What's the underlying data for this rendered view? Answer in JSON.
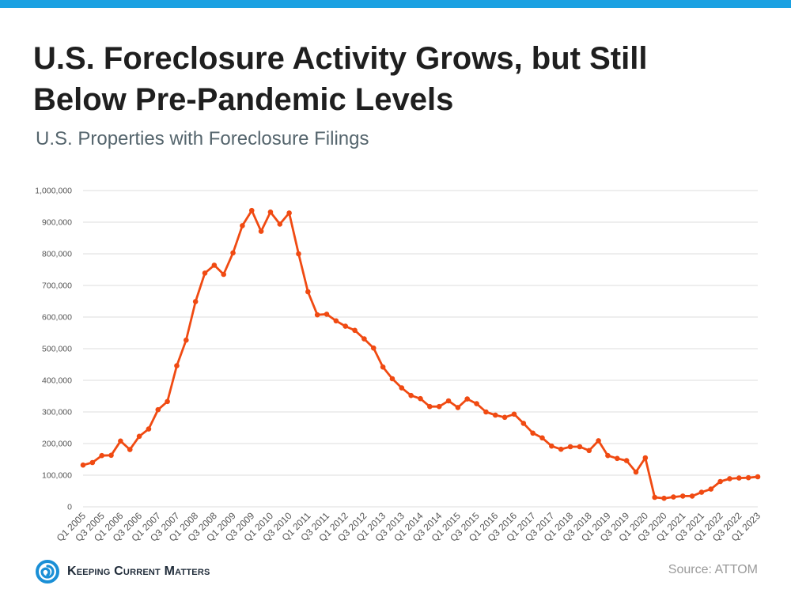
{
  "colors": {
    "top_bar": "#1ba1e2",
    "line": "#f04a12",
    "grid": "#dcdcdc",
    "axis_text": "#555555",
    "logo": "#1a8fd6"
  },
  "header": {
    "title_line1": "U.S. Foreclosure Activity Grows, but Still",
    "title_line2": "Below Pre-Pandemic Levels",
    "subtitle": "U.S. Properties with Foreclosure Filings"
  },
  "footer": {
    "brand": "Keeping Current Matters",
    "logo_icon": "spiral-logo-icon",
    "source": "Source: ATTOM"
  },
  "chart_data": {
    "type": "line",
    "title": "",
    "xlabel": "",
    "ylabel": "",
    "ylim": [
      0,
      1000000
    ],
    "yticks": [
      0,
      100000,
      200000,
      300000,
      400000,
      500000,
      600000,
      700000,
      800000,
      900000,
      1000000
    ],
    "ytick_labels": [
      "0",
      "100,000",
      "200,000",
      "300,000",
      "400,000",
      "500,000",
      "600,000",
      "700,000",
      "800,000",
      "900,000",
      "1,000,000"
    ],
    "grid": true,
    "legend": "none",
    "markers": true,
    "categories": [
      "Q1 2005",
      "Q2 2005",
      "Q3 2005",
      "Q4 2005",
      "Q1 2006",
      "Q2 2006",
      "Q3 2006",
      "Q4 2006",
      "Q1 2007",
      "Q2 2007",
      "Q3 2007",
      "Q4 2007",
      "Q1 2008",
      "Q2 2008",
      "Q3 2008",
      "Q4 2008",
      "Q1 2009",
      "Q2 2009",
      "Q3 2009",
      "Q4 2009",
      "Q1 2010",
      "Q2 2010",
      "Q3 2010",
      "Q4 2010",
      "Q1 2011",
      "Q2 2011",
      "Q3 2011",
      "Q4 2011",
      "Q1 2012",
      "Q2 2012",
      "Q3 2012",
      "Q4 2012",
      "Q1 2013",
      "Q2 2013",
      "Q3 2013",
      "Q4 2013",
      "Q1 2014",
      "Q2 2014",
      "Q3 2014",
      "Q4 2014",
      "Q1 2015",
      "Q2 2015",
      "Q3 2015",
      "Q4 2015",
      "Q1 2016",
      "Q2 2016",
      "Q3 2016",
      "Q4 2016",
      "Q1 2017",
      "Q2 2017",
      "Q3 2017",
      "Q4 2017",
      "Q1 2018",
      "Q2 2018",
      "Q3 2018",
      "Q4 2018",
      "Q1 2019",
      "Q2 2019",
      "Q3 2019",
      "Q4 2019",
      "Q1 2020",
      "Q2 2020",
      "Q3 2020",
      "Q4 2020",
      "Q1 2021",
      "Q2 2021",
      "Q3 2021",
      "Q4 2021",
      "Q1 2022",
      "Q2 2022",
      "Q3 2022",
      "Q4 2022",
      "Q1 2023"
    ],
    "x_tick_labels": [
      "Q1 2005",
      "Q3 2005",
      "Q1 2006",
      "Q3 2006",
      "Q1 2007",
      "Q3 2007",
      "Q1 2008",
      "Q3 2008",
      "Q1 2009",
      "Q3 2009",
      "Q1 2010",
      "Q3 2010",
      "Q1 2011",
      "Q3 2011",
      "Q1 2012",
      "Q3 2012",
      "Q1 2013",
      "Q3 2013",
      "Q1 2014",
      "Q3 2014",
      "Q1 2015",
      "Q3 2015",
      "Q1 2016",
      "Q3 2016",
      "Q1 2017",
      "Q3 2017",
      "Q1 2018",
      "Q3 2018",
      "Q1 2019",
      "Q3 2019",
      "Q1 2020",
      "Q3 2020",
      "Q1 2021",
      "Q3 2021",
      "Q1 2022",
      "Q3 2022",
      "Q1 2023"
    ],
    "series": [
      {
        "values": [
          132000,
          140000,
          162000,
          163000,
          208000,
          181000,
          223000,
          246000,
          307000,
          333000,
          446000,
          527000,
          649000,
          739000,
          764000,
          735000,
          803000,
          889000,
          937000,
          871000,
          932000,
          894000,
          929000,
          800000,
          680000,
          607000,
          609000,
          588000,
          571000,
          558000,
          531000,
          502000,
          442000,
          405000,
          376000,
          352000,
          342000,
          317000,
          317000,
          335000,
          314000,
          341000,
          326000,
          300000,
          290000,
          283000,
          293000,
          264000,
          233000,
          218000,
          192000,
          182000,
          190000,
          190000,
          178000,
          209000,
          162000,
          153000,
          146000,
          110000,
          155000,
          30000,
          27000,
          31000,
          34000,
          34000,
          46000,
          56000,
          80000,
          89000,
          91000,
          92000,
          95000
        ]
      }
    ]
  }
}
